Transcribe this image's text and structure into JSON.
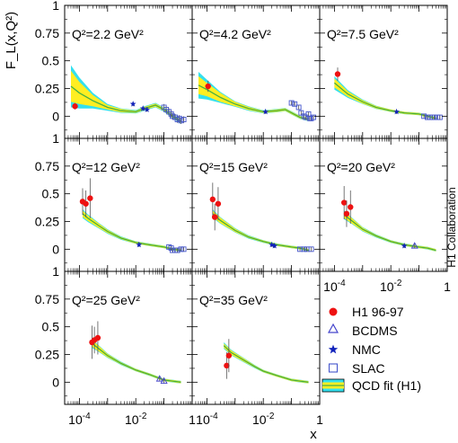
{
  "figure": {
    "ylabel": "F_L(x,Q²)",
    "xlabel": "x",
    "side_label": "H1 Collaboration",
    "colors": {
      "band_outer": "#33e0ee",
      "band_inner": "#ffee22",
      "curve": "#44b044",
      "h1": "#ee1111",
      "bcdms": "#4444cc",
      "nmc": "#1122bb",
      "slac": "#4455cc"
    }
  },
  "legend": {
    "entries": [
      {
        "label": "H1 96-97",
        "marker": "filled-circle"
      },
      {
        "label": "BCDMS",
        "marker": "open-triangle"
      },
      {
        "label": "NMC",
        "marker": "star"
      },
      {
        "label": "SLAC",
        "marker": "open-square"
      },
      {
        "label": "QCD fit (H1)",
        "marker": "band"
      }
    ]
  },
  "chart_data": {
    "type": "scatter",
    "xscale": "log",
    "xlim": [
      3e-05,
      1
    ],
    "ylim": [
      -0.2,
      1
    ],
    "x_ticks": [
      "10^-4",
      "10^-2",
      "1"
    ],
    "y_ticks": [
      "0",
      "0.25",
      "0.5",
      "0.75",
      "1"
    ],
    "grid": false,
    "legend_position": "bottom-right",
    "panels": [
      {
        "label": "Q²=2.2 GeV²",
        "fit": {
          "x": [
            5e-05,
            0.0001,
            0.0003,
            0.001,
            0.003,
            0.01,
            0.02,
            0.05,
            0.1,
            0.2,
            0.4
          ],
          "y": [
            0.27,
            0.21,
            0.14,
            0.08,
            0.05,
            0.04,
            0.07,
            0.1,
            0.06,
            0.0,
            -0.05
          ],
          "inner_err": [
            0.14,
            0.1,
            0.05,
            0.02,
            0.015,
            0.01,
            0.015,
            0.015,
            0.015,
            0.015,
            0.015
          ],
          "outer_err": [
            0.19,
            0.14,
            0.07,
            0.03,
            0.02,
            0.015,
            0.02,
            0.02,
            0.02,
            0.02,
            0.02
          ]
        },
        "series": [
          {
            "name": "H1 96-97",
            "points": [
              [
                7e-05,
                0.09,
                0.03
              ]
            ]
          },
          {
            "name": "NMC",
            "points": [
              [
                0.008,
                0.11,
                0.02
              ],
              [
                0.018,
                0.07,
                0.02
              ],
              [
                0.025,
                0.06,
                0.02
              ]
            ]
          },
          {
            "name": "SLAC",
            "points": [
              [
                0.1,
                0.08,
                0.03
              ],
              [
                0.12,
                0.06,
                0.03
              ],
              [
                0.15,
                0.04,
                0.03
              ],
              [
                0.18,
                0.02,
                0.03
              ],
              [
                0.2,
                0.0,
                0.03
              ],
              [
                0.25,
                -0.01,
                0.03
              ],
              [
                0.3,
                -0.03,
                0.03
              ],
              [
                0.35,
                -0.02,
                0.03
              ],
              [
                0.4,
                -0.04,
                0.03
              ],
              [
                0.5,
                -0.03,
                0.03
              ]
            ]
          }
        ]
      },
      {
        "label": "Q²=4.2 GeV²",
        "fit": {
          "x": [
            5e-05,
            0.0001,
            0.0003,
            0.001,
            0.003,
            0.01,
            0.03,
            0.06,
            0.1,
            0.2,
            0.4
          ],
          "y": [
            0.28,
            0.24,
            0.17,
            0.11,
            0.07,
            0.04,
            0.05,
            0.06,
            0.03,
            -0.01,
            -0.03
          ],
          "inner_err": [
            0.08,
            0.06,
            0.04,
            0.02,
            0.015,
            0.01,
            0.012,
            0.012,
            0.012,
            0.012,
            0.012
          ],
          "outer_err": [
            0.12,
            0.09,
            0.05,
            0.025,
            0.02,
            0.014,
            0.015,
            0.015,
            0.015,
            0.015,
            0.015
          ]
        },
        "series": [
          {
            "name": "H1 96-97",
            "points": [
              [
                0.00011,
                0.27,
                0.05
              ]
            ]
          },
          {
            "name": "NMC",
            "points": [
              [
                0.012,
                0.04,
                0.02
              ]
            ]
          },
          {
            "name": "SLAC",
            "points": [
              [
                0.1,
                0.12,
                0.02
              ],
              [
                0.13,
                0.11,
                0.02
              ],
              [
                0.18,
                0.08,
                0.02
              ],
              [
                0.22,
                0.03,
                0.02
              ],
              [
                0.28,
                0.0,
                0.02
              ],
              [
                0.32,
                -0.01,
                0.02
              ],
              [
                0.4,
                0.02,
                0.02
              ],
              [
                0.45,
                -0.02,
                0.02
              ],
              [
                0.5,
                -0.02,
                0.02
              ],
              [
                0.6,
                -0.01,
                0.02
              ]
            ]
          }
        ]
      },
      {
        "label": "Q²=7.5 GeV²",
        "fit": {
          "x": [
            0.0001,
            0.0003,
            0.001,
            0.003,
            0.01,
            0.03,
            0.1,
            0.2,
            0.4
          ],
          "y": [
            0.3,
            0.2,
            0.13,
            0.08,
            0.05,
            0.03,
            0.02,
            0.0,
            -0.02
          ],
          "inner_err": [
            0.04,
            0.025,
            0.015,
            0.012,
            0.01,
            0.01,
            0.01,
            0.01,
            0.01
          ],
          "outer_err": [
            0.06,
            0.035,
            0.02,
            0.015,
            0.012,
            0.012,
            0.012,
            0.012,
            0.012
          ]
        },
        "series": [
          {
            "name": "H1 96-97",
            "points": [
              [
                0.00013,
                0.38,
                0.06
              ]
            ]
          },
          {
            "name": "NMC",
            "points": [
              [
                0.016,
                0.04,
                0.02
              ]
            ]
          },
          {
            "name": "SLAC",
            "points": [
              [
                0.15,
                0.0,
                0.02
              ],
              [
                0.2,
                -0.01,
                0.02
              ],
              [
                0.25,
                -0.01,
                0.02
              ],
              [
                0.3,
                -0.01,
                0.02
              ],
              [
                0.35,
                -0.01,
                0.02
              ],
              [
                0.45,
                -0.01,
                0.02
              ],
              [
                0.55,
                -0.01,
                0.02
              ]
            ]
          }
        ]
      },
      {
        "label": "Q²=12 GeV²",
        "fit": {
          "x": [
            0.00013,
            0.0002,
            0.0005,
            0.001,
            0.003,
            0.01,
            0.03,
            0.1,
            0.2,
            0.4
          ],
          "y": [
            0.32,
            0.28,
            0.21,
            0.16,
            0.1,
            0.06,
            0.04,
            0.02,
            0.0,
            -0.01
          ],
          "inner_err": [
            0.03,
            0.025,
            0.02,
            0.015,
            0.01,
            0.01,
            0.01,
            0.01,
            0.01,
            0.01
          ],
          "outer_err": [
            0.04,
            0.035,
            0.025,
            0.02,
            0.015,
            0.012,
            0.012,
            0.012,
            0.012,
            0.012
          ]
        },
        "series": [
          {
            "name": "H1 96-97",
            "points": [
              [
                0.00013,
                0.43,
                0.12
              ],
              [
                0.00017,
                0.41,
                0.12
              ],
              [
                0.00024,
                0.46,
                0.18
              ]
            ]
          },
          {
            "name": "NMC",
            "points": [
              [
                0.013,
                0.04,
                0.02
              ]
            ]
          },
          {
            "name": "SLAC",
            "points": [
              [
                0.15,
                0.02,
                0.02
              ],
              [
                0.18,
                0.01,
                0.02
              ],
              [
                0.2,
                -0.01,
                0.02
              ],
              [
                0.25,
                -0.01,
                0.02
              ],
              [
                0.3,
                -0.01,
                0.02
              ],
              [
                0.4,
                0.0,
                0.02
              ],
              [
                0.5,
                0.0,
                0.02
              ]
            ]
          }
        ]
      },
      {
        "label": "Q²=15 GeV²",
        "fit": {
          "x": [
            0.00016,
            0.0003,
            0.001,
            0.003,
            0.01,
            0.03,
            0.1,
            0.2,
            0.4
          ],
          "y": [
            0.32,
            0.26,
            0.17,
            0.11,
            0.07,
            0.04,
            0.02,
            0.01,
            -0.01
          ],
          "inner_err": [
            0.03,
            0.025,
            0.015,
            0.01,
            0.01,
            0.01,
            0.01,
            0.01,
            0.01
          ],
          "outer_err": [
            0.04,
            0.03,
            0.02,
            0.015,
            0.012,
            0.012,
            0.012,
            0.012,
            0.012
          ]
        },
        "series": [
          {
            "name": "H1 96-97",
            "points": [
              [
                0.00016,
                0.45,
                0.15
              ],
              [
                0.00019,
                0.29,
                0.12
              ],
              [
                0.00025,
                0.41,
                0.15
              ]
            ]
          },
          {
            "name": "NMC",
            "points": [
              [
                0.02,
                0.04,
                0.02
              ],
              [
                0.025,
                0.03,
                0.02
              ]
            ]
          },
          {
            "name": "SLAC",
            "points": [
              [
                0.2,
                0.0,
                0.02
              ],
              [
                0.28,
                0.0,
                0.02
              ],
              [
                0.35,
                0.0,
                0.02
              ],
              [
                0.5,
                0.0,
                0.02
              ]
            ]
          }
        ]
      },
      {
        "label": "Q²=20 GeV²",
        "fit": {
          "x": [
            0.00022,
            0.0004,
            0.001,
            0.003,
            0.01,
            0.03,
            0.1,
            0.2,
            0.4
          ],
          "y": [
            0.31,
            0.26,
            0.18,
            0.12,
            0.07,
            0.04,
            0.02,
            0.01,
            -0.01
          ],
          "inner_err": [
            0.03,
            0.025,
            0.015,
            0.01,
            0.01,
            0.01,
            0.01,
            0.01,
            0.01
          ],
          "outer_err": [
            0.04,
            0.03,
            0.02,
            0.015,
            0.012,
            0.012,
            0.012,
            0.012,
            0.012
          ]
        },
        "series": [
          {
            "name": "H1 96-97",
            "points": [
              [
                0.00022,
                0.42,
                0.15
              ],
              [
                0.00027,
                0.32,
                0.12
              ],
              [
                0.00037,
                0.38,
                0.15
              ]
            ]
          },
          {
            "name": "NMC",
            "points": [
              [
                0.03,
                0.03,
                0.02
              ]
            ]
          },
          {
            "name": "BCDMS",
            "points": [
              [
                0.07,
                0.03,
                0.02
              ]
            ]
          }
        ]
      },
      {
        "label": "Q²=25 GeV²",
        "fit": {
          "x": [
            0.00028,
            0.0005,
            0.001,
            0.003,
            0.01,
            0.03,
            0.1,
            0.2,
            0.4
          ],
          "y": [
            0.35,
            0.3,
            0.24,
            0.17,
            0.11,
            0.07,
            0.02,
            0.01,
            0.0
          ],
          "inner_err": [
            0.03,
            0.025,
            0.015,
            0.01,
            0.01,
            0.01,
            0.01,
            0.01,
            0.01
          ],
          "outer_err": [
            0.04,
            0.03,
            0.02,
            0.015,
            0.012,
            0.012,
            0.012,
            0.012,
            0.012
          ]
        },
        "series": [
          {
            "name": "H1 96-97",
            "points": [
              [
                0.00028,
                0.36,
                0.15
              ],
              [
                0.00034,
                0.38,
                0.12
              ],
              [
                0.00045,
                0.4,
                0.15
              ]
            ]
          },
          {
            "name": "BCDMS",
            "points": [
              [
                0.07,
                0.03,
                0.02
              ],
              [
                0.1,
                0.01,
                0.02
              ]
            ]
          }
        ]
      },
      {
        "label": "Q²=35 GeV²",
        "fit": {
          "x": [
            0.0004,
            0.0007,
            0.002,
            0.005,
            0.01,
            0.03,
            0.1,
            0.2,
            0.4
          ],
          "y": [
            0.33,
            0.27,
            0.2,
            0.14,
            0.1,
            0.06,
            0.02,
            0.01,
            0.0
          ],
          "inner_err": [
            0.02,
            0.02,
            0.015,
            0.01,
            0.01,
            0.01,
            0.01,
            0.01,
            0.01
          ],
          "outer_err": [
            0.03,
            0.025,
            0.02,
            0.015,
            0.012,
            0.012,
            0.012,
            0.012,
            0.012
          ]
        },
        "series": [
          {
            "name": "H1 96-97",
            "points": [
              [
                0.0005,
                0.15,
                0.12
              ],
              [
                0.0006,
                0.24,
                0.15
              ]
            ]
          }
        ]
      }
    ]
  }
}
